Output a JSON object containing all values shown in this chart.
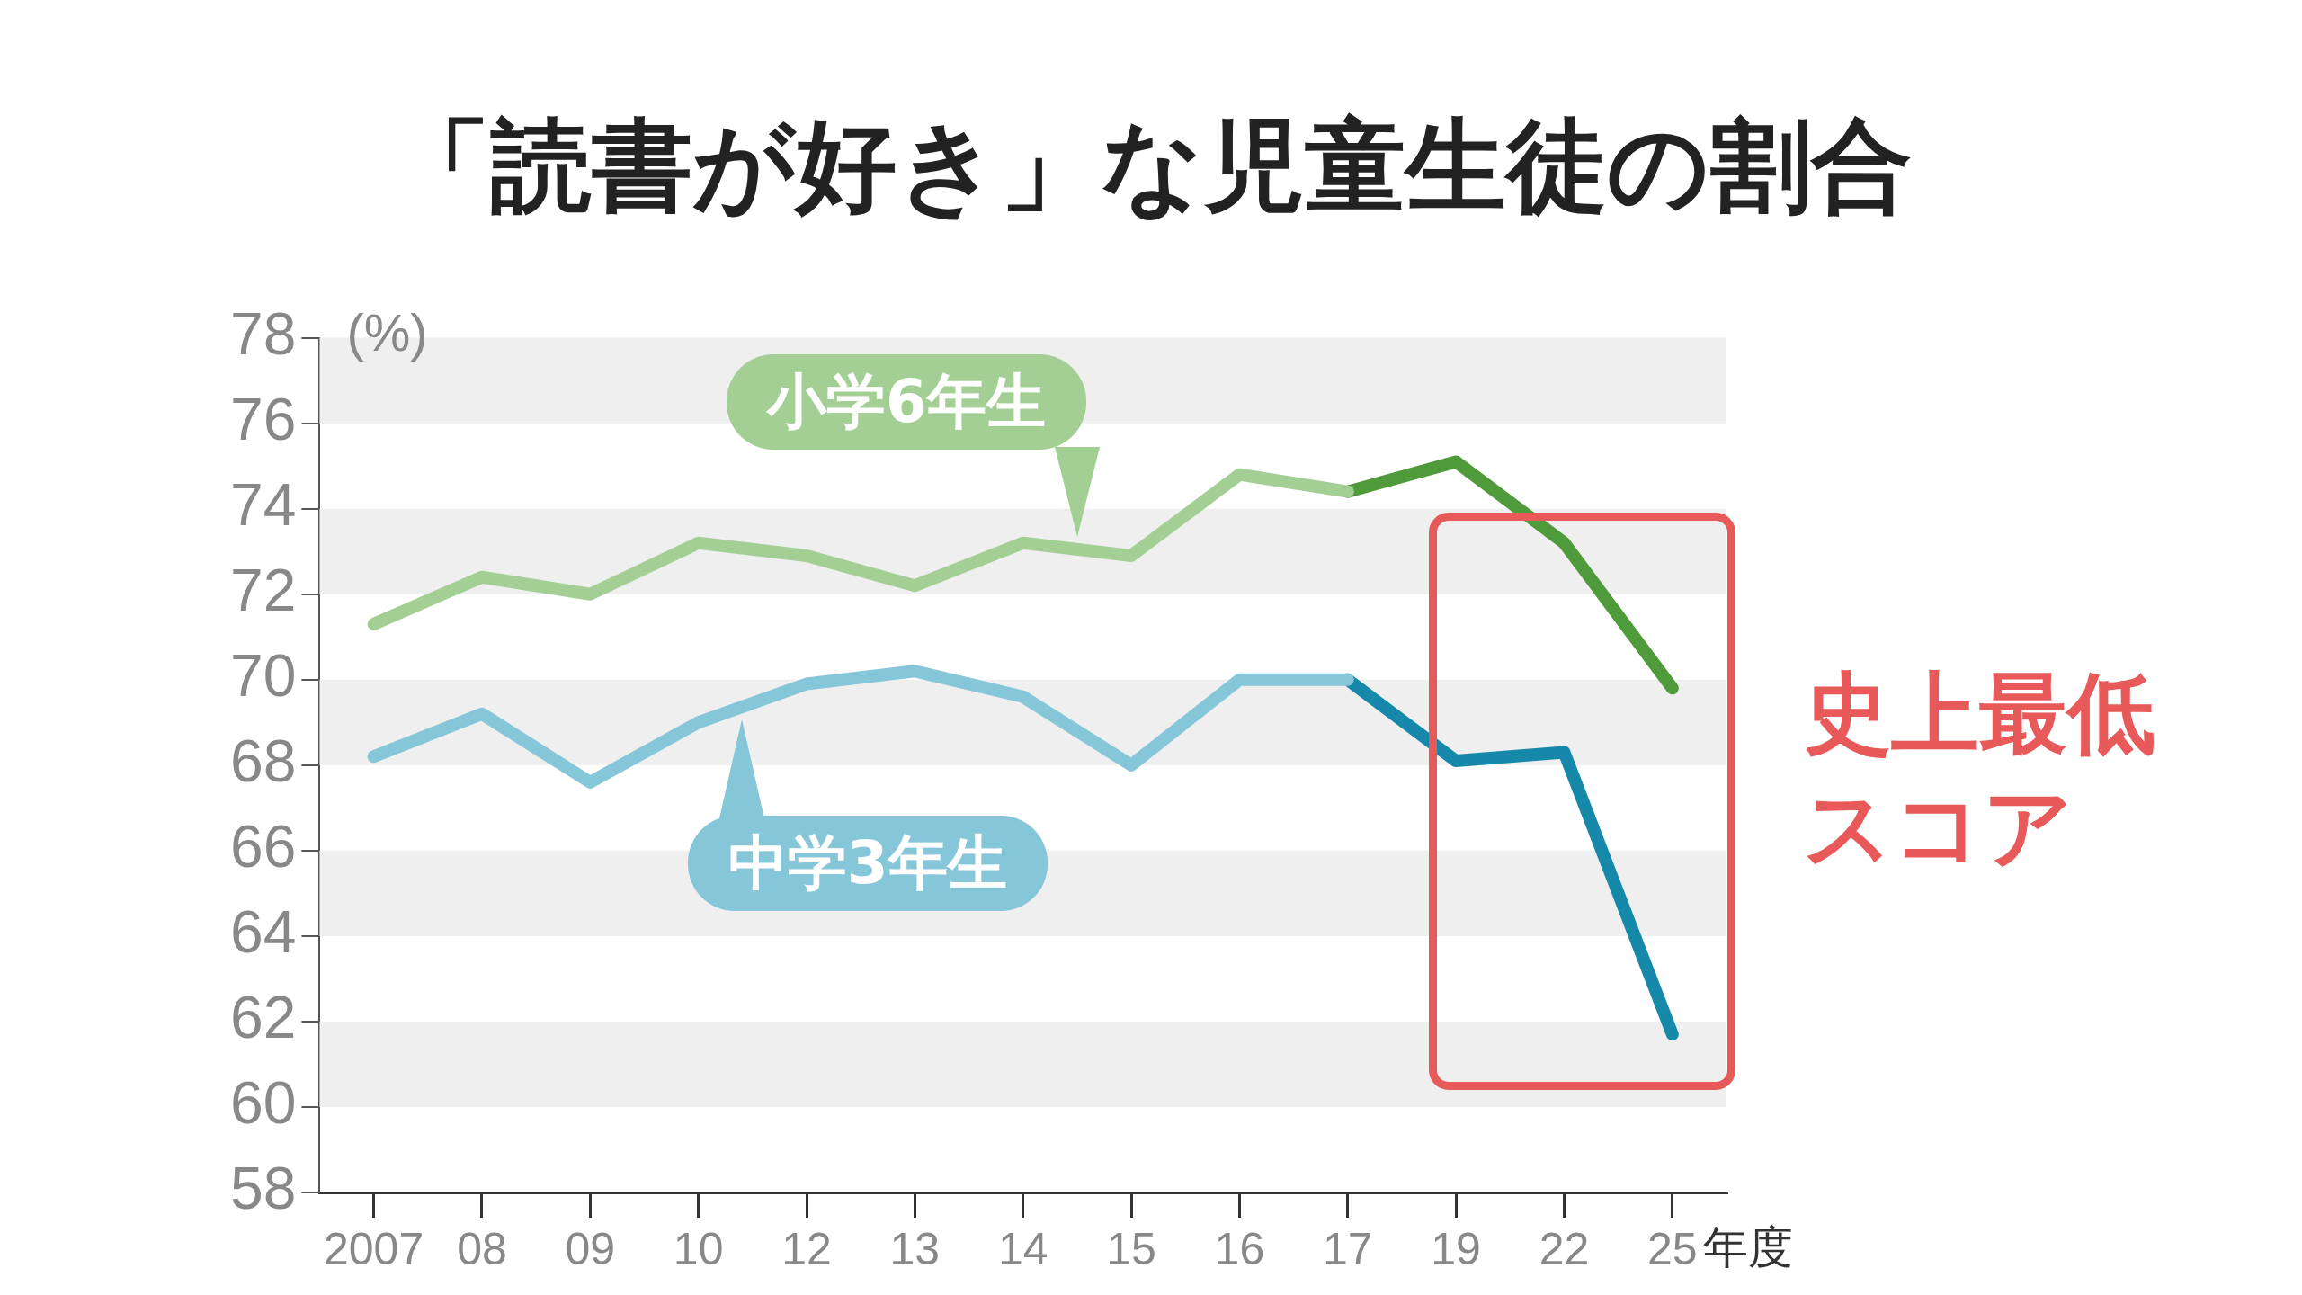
{
  "chart_data": {
    "type": "line",
    "title": "「読書が好き」な児童生徒の割合",
    "xlabel": "年度",
    "ylabel": "(%)",
    "categories": [
      "2007",
      "08",
      "09",
      "10",
      "12",
      "13",
      "14",
      "15",
      "16",
      "17",
      "19",
      "22",
      "25"
    ],
    "series": [
      {
        "name": "小学6年生",
        "color": "#a3cf95",
        "values": [
          71.3,
          72.4,
          72.0,
          73.2,
          72.9,
          72.2,
          73.2,
          72.9,
          74.8,
          74.4,
          null,
          null,
          null
        ]
      },
      {
        "name": "中学3年生",
        "color": "#85c6d8",
        "values": [
          68.2,
          69.2,
          67.6,
          69.0,
          69.9,
          70.2,
          69.6,
          68.0,
          70.0,
          70.0,
          null,
          null,
          null
        ]
      },
      {
        "color": "#4f9a3a",
        "values": [
          null,
          null,
          null,
          null,
          null,
          null,
          null,
          null,
          null,
          74.4,
          75.1,
          73.2,
          69.8
        ]
      },
      {
        "color": "#1689ab",
        "values": [
          null,
          null,
          null,
          null,
          null,
          null,
          null,
          null,
          null,
          70.0,
          68.1,
          68.3,
          61.7
        ]
      }
    ],
    "ylim": [
      58,
      78
    ],
    "yticks": [
      58,
      60,
      62,
      64,
      66,
      68,
      70,
      72,
      74,
      76,
      78
    ],
    "bands": [
      {
        "axis": "y",
        "from": 60,
        "to": 62,
        "color": "#efefef"
      },
      {
        "axis": "y",
        "from": 64,
        "to": 66,
        "color": "#efefef"
      },
      {
        "axis": "y",
        "from": 68,
        "to": 70,
        "color": "#efefef"
      },
      {
        "axis": "y",
        "from": 72,
        "to": 74,
        "color": "#efefef"
      },
      {
        "axis": "y",
        "from": 76,
        "to": 78,
        "color": "#efefef"
      }
    ],
    "marker": "none",
    "line_style": "solid",
    "annotations": [
      "史上最低スコア"
    ]
  }
}
